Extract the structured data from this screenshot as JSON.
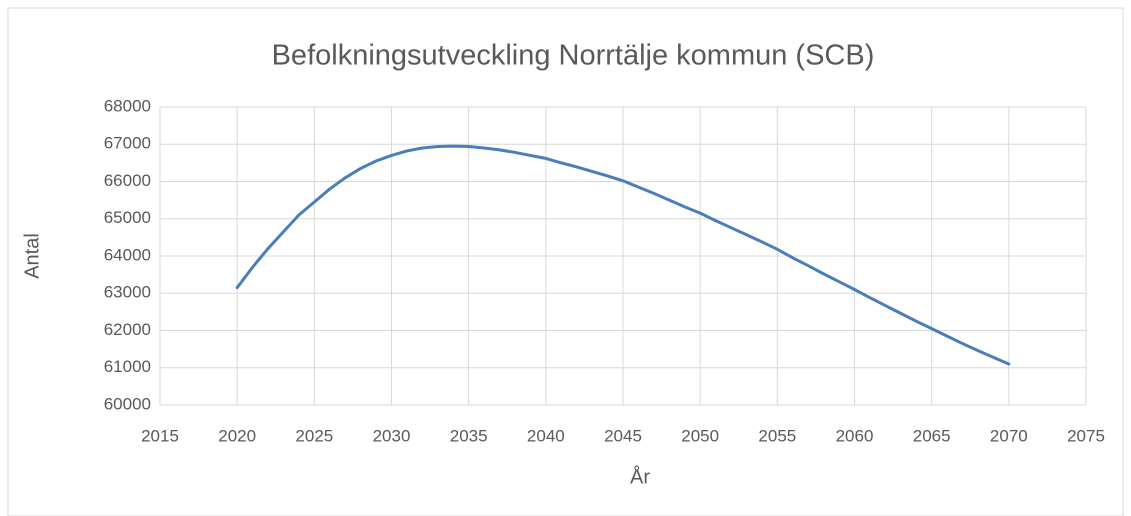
{
  "chart_data": {
    "type": "line",
    "title": "Befolkningsutveckling Norrtälje kommun (SCB)",
    "x_label": "År",
    "y_label": "Antal",
    "x": [
      2020,
      2021,
      2022,
      2023,
      2024,
      2025,
      2026,
      2027,
      2028,
      2029,
      2030,
      2031,
      2032,
      2033,
      2034,
      2035,
      2036,
      2037,
      2038,
      2039,
      2040,
      2041,
      2042,
      2043,
      2044,
      2045,
      2046,
      2047,
      2048,
      2049,
      2050,
      2051,
      2052,
      2053,
      2054,
      2055,
      2056,
      2057,
      2058,
      2059,
      2060,
      2061,
      2062,
      2063,
      2064,
      2065,
      2066,
      2067,
      2068,
      2069,
      2070
    ],
    "series": [
      {
        "name": "Antal",
        "color": "#4a7ebb",
        "values": [
          63150,
          63700,
          64200,
          64650,
          65100,
          65450,
          65800,
          66100,
          66350,
          66550,
          66700,
          66820,
          66900,
          66940,
          66950,
          66940,
          66900,
          66850,
          66780,
          66700,
          66620,
          66500,
          66390,
          66270,
          66150,
          66020,
          65850,
          65680,
          65500,
          65320,
          65150,
          64950,
          64760,
          64570,
          64380,
          64180,
          63950,
          63740,
          63520,
          63310,
          63100,
          62880,
          62670,
          62460,
          62250,
          62050,
          61850,
          61650,
          61460,
          61280,
          61100
        ]
      }
    ],
    "xlim": [
      2015,
      2075
    ],
    "xticks": [
      2015,
      2020,
      2025,
      2030,
      2035,
      2040,
      2045,
      2050,
      2055,
      2060,
      2065,
      2070,
      2075
    ],
    "ylim": [
      60000,
      68000
    ],
    "yticks": [
      60000,
      61000,
      62000,
      63000,
      64000,
      65000,
      66000,
      67000,
      68000
    ],
    "grid": true
  }
}
